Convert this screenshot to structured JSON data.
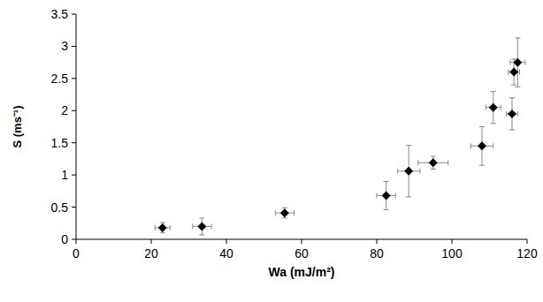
{
  "chart_data": {
    "type": "scatter",
    "x_label": "Wa (mJ/m²)",
    "y_label": "S (ms⁻¹)",
    "x": [
      23,
      33.5,
      55.5,
      82.5,
      88.5,
      95,
      108,
      111,
      116,
      116.5,
      117.5
    ],
    "values": [
      0.18,
      0.2,
      0.41,
      0.68,
      1.06,
      1.19,
      1.45,
      2.05,
      1.95,
      2.6,
      2.75
    ],
    "x_error": [
      2,
      2.5,
      2.5,
      2.5,
      3,
      4,
      3,
      2,
      1.5,
      1.5,
      2
    ],
    "y_error": [
      0.08,
      0.13,
      0.08,
      0.22,
      0.4,
      0.1,
      0.3,
      0.25,
      0.25,
      0.2,
      0.38
    ],
    "xlim": [
      0,
      120
    ],
    "xticks": [
      0,
      20,
      40,
      60,
      80,
      100,
      120
    ],
    "ylim": [
      0,
      3.5
    ],
    "yticks": [
      0,
      0.5,
      1,
      1.5,
      2,
      2.5,
      3,
      3.5
    ],
    "color": "#000000",
    "marker": "diamond",
    "grid": false
  }
}
